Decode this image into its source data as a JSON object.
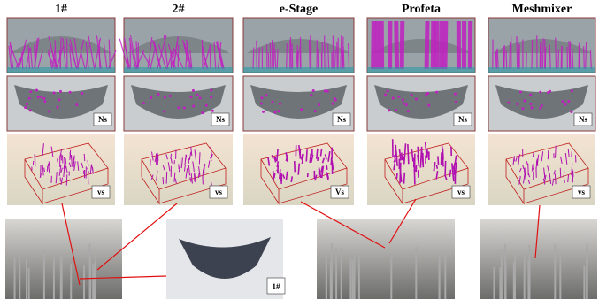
{
  "columns": [
    "1#",
    "2#",
    "e-Stage",
    "Profeta",
    "Meshmixer"
  ],
  "ns_labels": [
    "Ns",
    "Ns",
    "Ns",
    "Ns",
    "Ns"
  ],
  "vs_labels": [
    "vs",
    "vs",
    "Vs",
    "vs",
    "vs"
  ],
  "photo_label": "1#"
}
